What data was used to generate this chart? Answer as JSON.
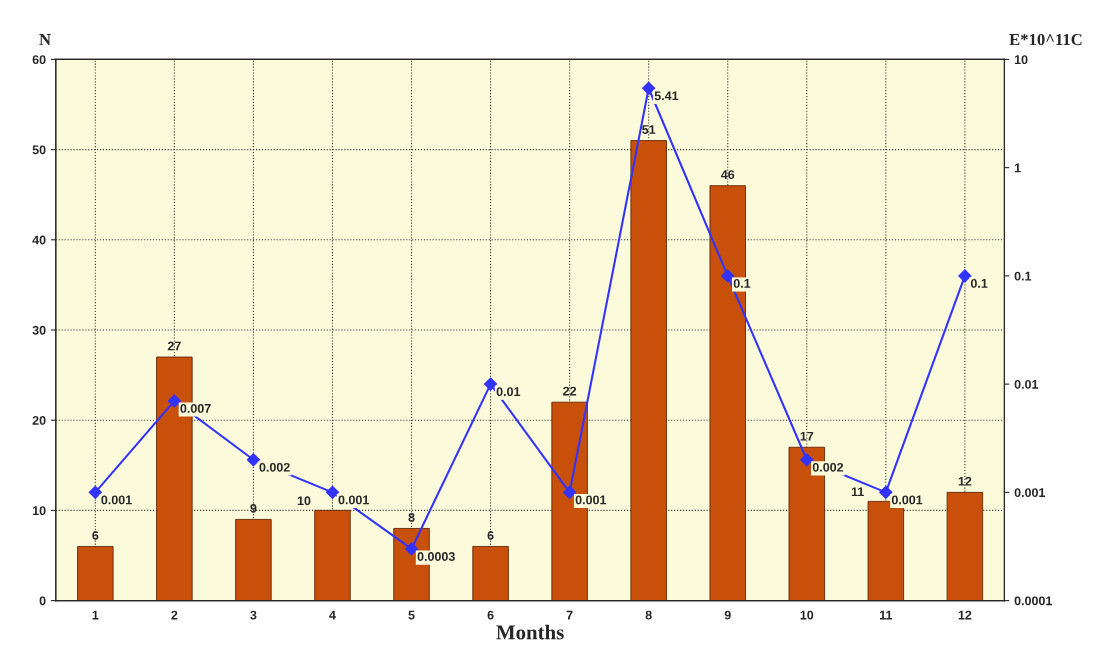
{
  "chart_data": {
    "type": "bar",
    "xlabel": "Months",
    "ylabel": "N",
    "y2label": "E*10^11C",
    "categories": [
      "1",
      "2",
      "3",
      "4",
      "5",
      "6",
      "7",
      "8",
      "9",
      "10",
      "11",
      "12"
    ],
    "series": [
      {
        "color": "#c8500a",
        "values": [
          6,
          27,
          9,
          10,
          8,
          6,
          22,
          51,
          46,
          17,
          11,
          12
        ]
      },
      {
        "type": "line",
        "axis": "y2",
        "color": "#3333ff",
        "marker": "diamond",
        "values": [
          0.001,
          0.007,
          0.002,
          0.001,
          0.0003,
          0.01,
          0.001,
          5.41,
          0.1,
          0.002,
          0.001,
          0.1
        ]
      }
    ],
    "ylim": [
      0,
      60
    ],
    "yticks": [
      0,
      10,
      20,
      30,
      40,
      50,
      60
    ],
    "log": "y2",
    "y2lim": [
      0.0001,
      10
    ],
    "y2ticks": [
      0.0001,
      0.001,
      0.01,
      0.1,
      1,
      10
    ],
    "grid": true,
    "data_labels": true
  }
}
